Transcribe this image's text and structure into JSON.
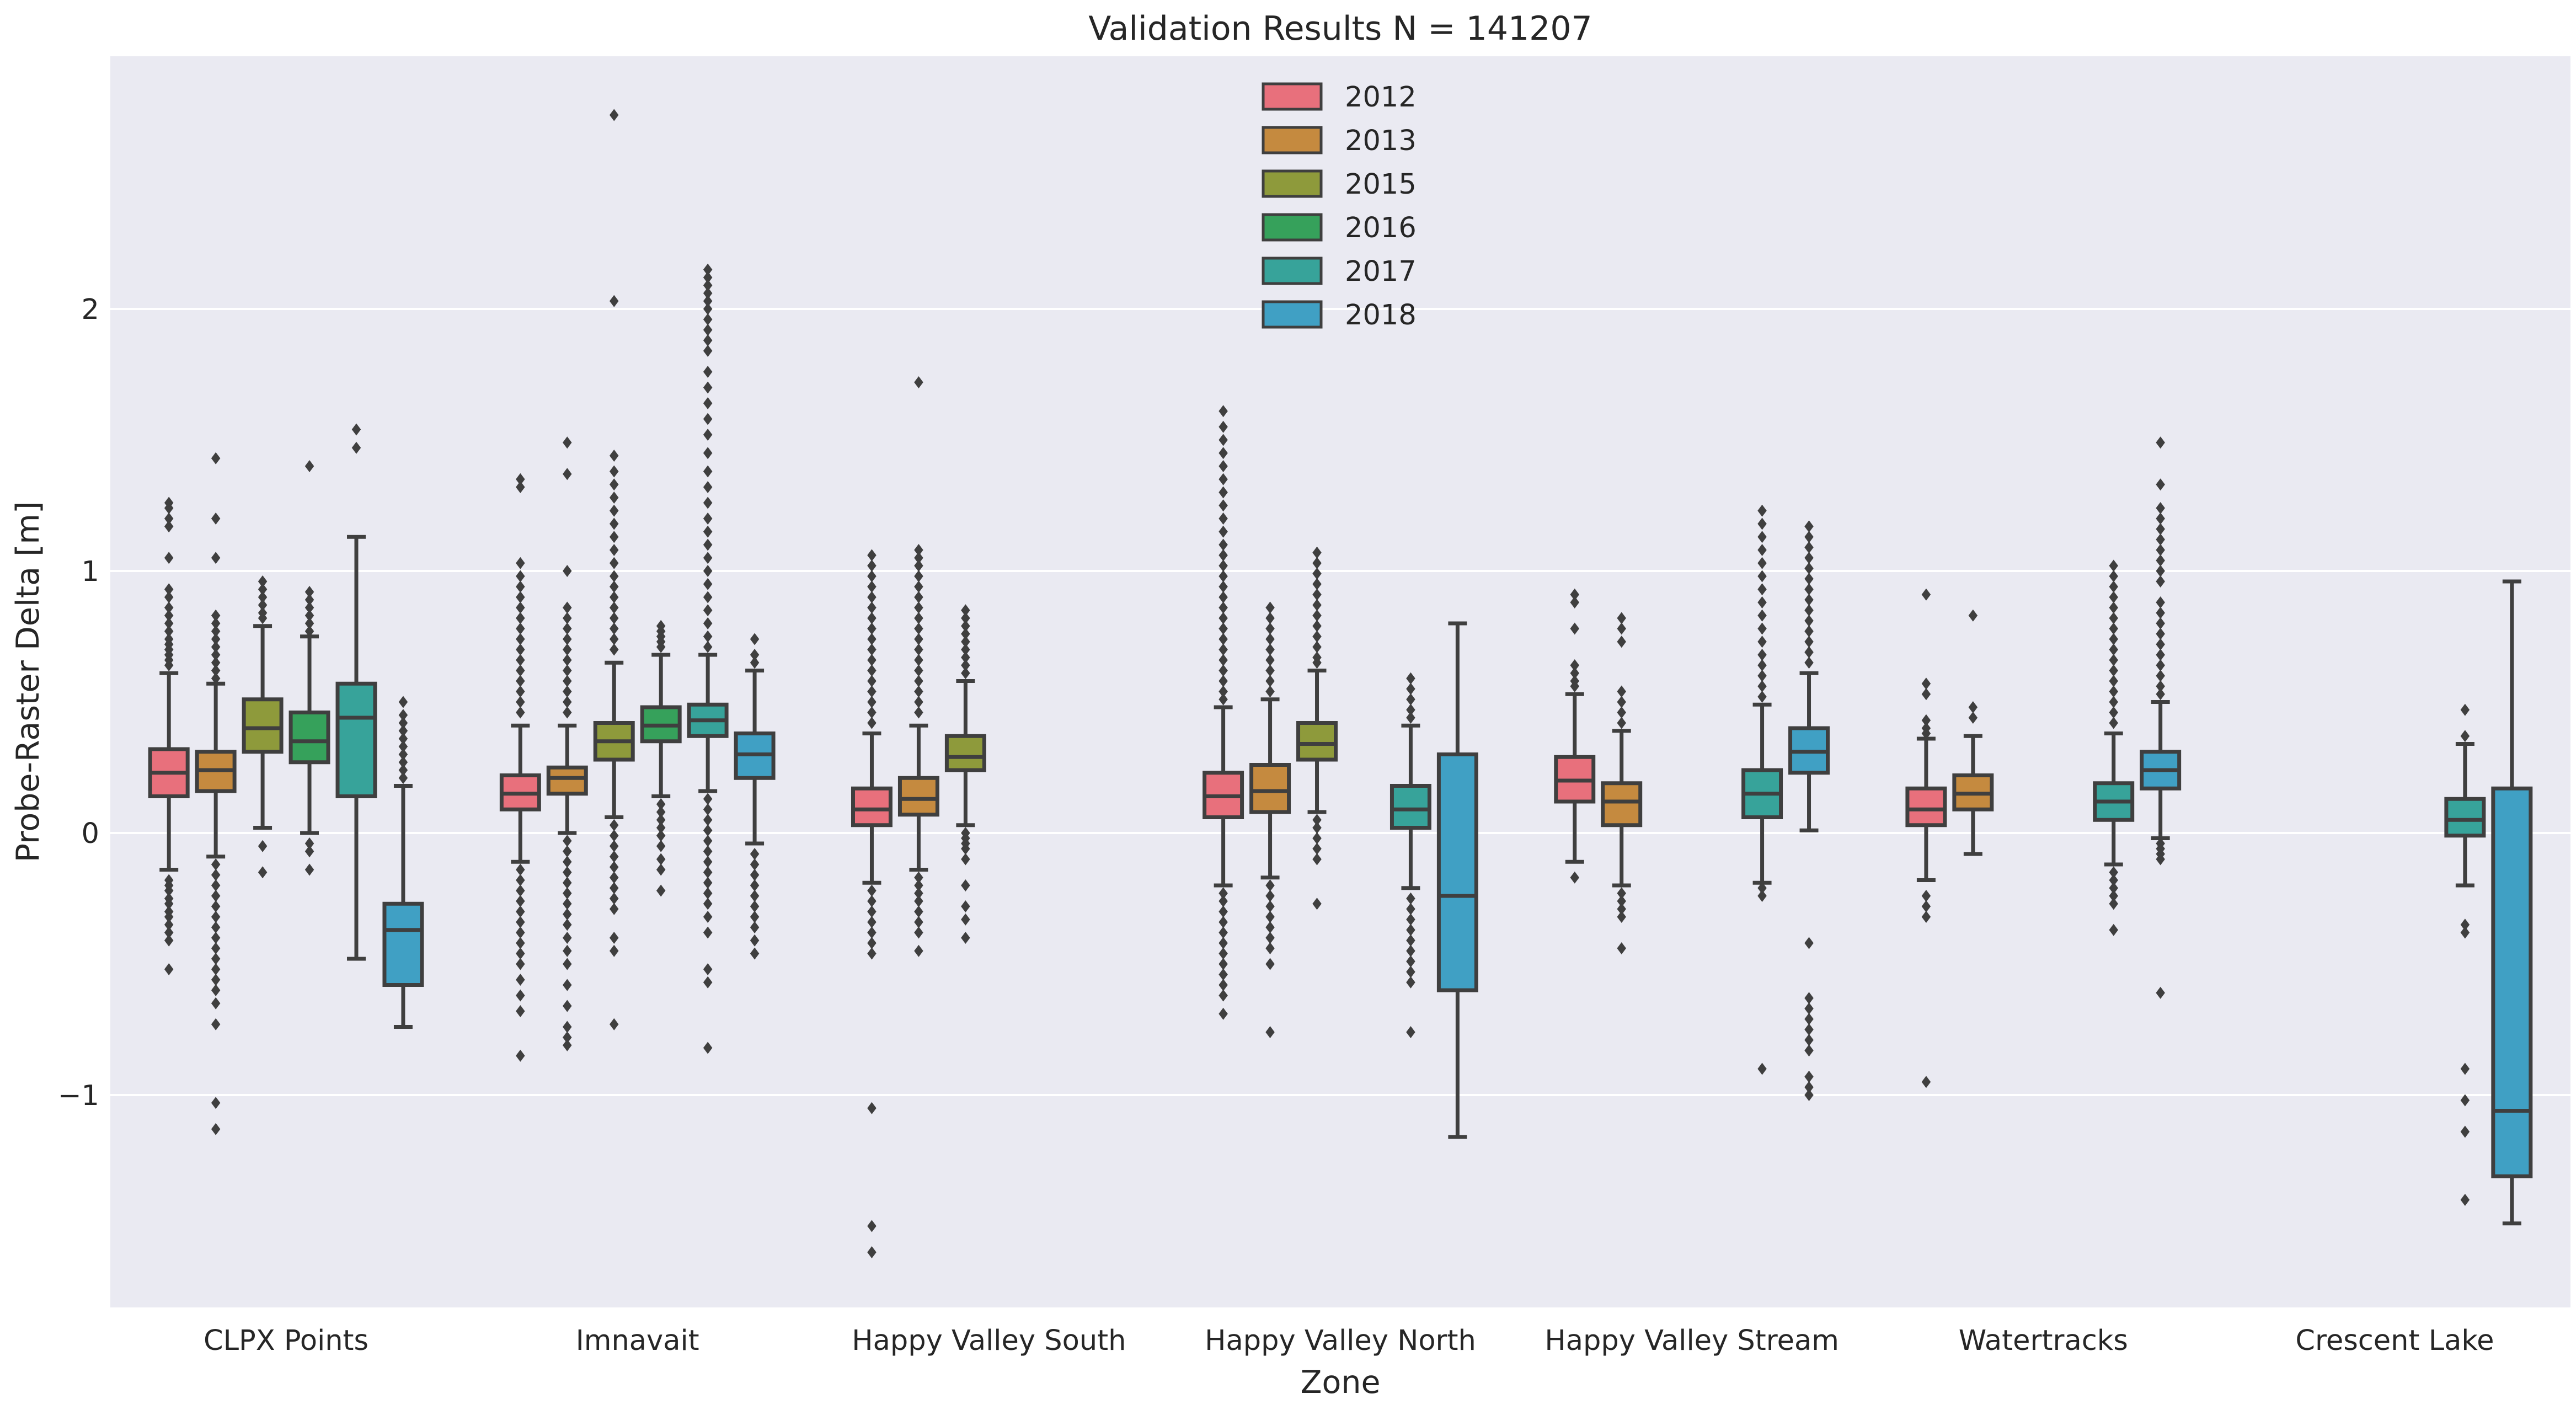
{
  "chart_data": {
    "type": "boxplot",
    "title": "Validation Results N = 141207",
    "xlabel": "Zone",
    "ylabel": "Probe-Raster Delta [m]",
    "ylim": [
      -1.8,
      2.85
    ],
    "yticks": [
      -1,
      0,
      1,
      2
    ],
    "ytick_labels": [
      "−1",
      "0",
      "1",
      "2"
    ],
    "grid": true,
    "legend_position": "top-center",
    "categories": [
      "CLPX Points",
      "Imnavait",
      "Happy Valley South",
      "Happy Valley North",
      "Happy Valley Stream",
      "Watertracks",
      "Crescent Lake"
    ],
    "series": [
      {
        "name": "2012",
        "color": "#e8707c"
      },
      {
        "name": "2013",
        "color": "#c58a3f"
      },
      {
        "name": "2015",
        "color": "#8e9a3b"
      },
      {
        "name": "2016",
        "color": "#36a15b"
      },
      {
        "name": "2017",
        "color": "#37a39a"
      },
      {
        "name": "2018",
        "color": "#40a0c4"
      }
    ],
    "boxes": [
      {
        "zone": 0,
        "series": 0,
        "q1": 0.14,
        "median": 0.23,
        "q3": 0.32,
        "whisker_low": -0.14,
        "whisker_high": 0.61,
        "outliers": [
          1.26,
          1.24,
          1.2,
          1.17,
          1.05,
          0.93,
          0.9,
          0.86,
          0.83,
          0.8,
          0.77,
          0.74,
          0.72,
          0.7,
          0.68,
          0.66,
          0.64,
          -0.18,
          -0.2,
          -0.22,
          -0.25,
          -0.27,
          -0.3,
          -0.32,
          -0.35,
          -0.38,
          -0.41,
          -0.52
        ]
      },
      {
        "zone": 0,
        "series": 1,
        "q1": 0.16,
        "median": 0.24,
        "q3": 0.31,
        "whisker_low": -0.09,
        "whisker_high": 0.57,
        "outliers": [
          1.43,
          1.2,
          1.05,
          0.83,
          0.8,
          0.77,
          0.74,
          0.71,
          0.68,
          0.65,
          0.62,
          0.59,
          -0.12,
          -0.16,
          -0.2,
          -0.24,
          -0.28,
          -0.32,
          -0.36,
          -0.4,
          -0.44,
          -0.48,
          -0.52,
          -0.56,
          -0.6,
          -0.65,
          -0.73,
          -1.03,
          -1.13
        ]
      },
      {
        "zone": 0,
        "series": 2,
        "q1": 0.31,
        "median": 0.4,
        "q3": 0.51,
        "whisker_low": 0.02,
        "whisker_high": 0.79,
        "outliers": [
          0.96,
          0.93,
          0.9,
          0.87,
          0.84,
          0.82,
          -0.05,
          -0.15
        ]
      },
      {
        "zone": 0,
        "series": 3,
        "q1": 0.27,
        "median": 0.35,
        "q3": 0.46,
        "whisker_low": 0.0,
        "whisker_high": 0.75,
        "outliers": [
          1.4,
          0.92,
          0.89,
          0.86,
          0.83,
          0.8,
          0.77,
          -0.04,
          -0.07,
          -0.14
        ]
      },
      {
        "zone": 0,
        "series": 4,
        "q1": 0.14,
        "median": 0.44,
        "q3": 0.57,
        "whisker_low": -0.48,
        "whisker_high": 1.13,
        "outliers": [
          1.54,
          1.47
        ]
      },
      {
        "zone": 0,
        "series": 5,
        "q1": -0.58,
        "median": -0.37,
        "q3": -0.27,
        "whisker_low": -0.74,
        "whisker_high": 0.18,
        "outliers": [
          0.5,
          0.45,
          0.42,
          0.39,
          0.36,
          0.33,
          0.3,
          0.27,
          0.24,
          0.21
        ]
      },
      {
        "zone": 1,
        "series": 0,
        "q1": 0.09,
        "median": 0.15,
        "q3": 0.22,
        "whisker_low": -0.11,
        "whisker_high": 0.41,
        "outliers": [
          1.35,
          1.32,
          1.03,
          0.98,
          0.94,
          0.9,
          0.86,
          0.82,
          0.78,
          0.74,
          0.7,
          0.66,
          0.62,
          0.58,
          0.54,
          0.5,
          0.46,
          -0.14,
          -0.18,
          -0.22,
          -0.26,
          -0.3,
          -0.34,
          -0.38,
          -0.42,
          -0.46,
          -0.5,
          -0.56,
          -0.62,
          -0.68,
          -0.85
        ]
      },
      {
        "zone": 1,
        "series": 1,
        "q1": 0.15,
        "median": 0.21,
        "q3": 0.25,
        "whisker_low": 0.0,
        "whisker_high": 0.41,
        "outliers": [
          1.49,
          1.37,
          1.0,
          0.86,
          0.82,
          0.78,
          0.74,
          0.7,
          0.66,
          0.62,
          0.58,
          0.54,
          0.5,
          0.46,
          -0.03,
          -0.07,
          -0.11,
          -0.15,
          -0.19,
          -0.23,
          -0.27,
          -0.31,
          -0.35,
          -0.4,
          -0.45,
          -0.5,
          -0.58,
          -0.66,
          -0.74,
          -0.78,
          -0.81
        ]
      },
      {
        "zone": 1,
        "series": 2,
        "q1": 0.28,
        "median": 0.35,
        "q3": 0.42,
        "whisker_low": 0.06,
        "whisker_high": 0.65,
        "outliers": [
          2.74,
          2.03,
          1.44,
          1.38,
          1.33,
          1.28,
          1.23,
          1.18,
          1.13,
          1.08,
          1.03,
          0.98,
          0.94,
          0.9,
          0.86,
          0.82,
          0.78,
          0.74,
          0.7,
          0.03,
          -0.01,
          -0.05,
          -0.09,
          -0.13,
          -0.17,
          -0.21,
          -0.25,
          -0.29,
          -0.4,
          -0.45,
          -0.73
        ]
      },
      {
        "zone": 1,
        "series": 3,
        "q1": 0.35,
        "median": 0.41,
        "q3": 0.48,
        "whisker_low": 0.14,
        "whisker_high": 0.68,
        "outliers": [
          0.79,
          0.77,
          0.75,
          0.73,
          0.71,
          0.11,
          0.08,
          0.05,
          0.02,
          -0.01,
          -0.05,
          -0.1,
          -0.14,
          -0.22
        ]
      },
      {
        "zone": 1,
        "series": 4,
        "q1": 0.37,
        "median": 0.43,
        "q3": 0.49,
        "whisker_low": 0.16,
        "whisker_high": 0.68,
        "outliers": [
          2.15,
          2.12,
          2.09,
          2.06,
          2.03,
          2.0,
          1.96,
          1.92,
          1.88,
          1.84,
          1.76,
          1.7,
          1.64,
          1.58,
          1.52,
          1.45,
          1.38,
          1.32,
          1.26,
          1.2,
          1.15,
          1.1,
          1.05,
          1.0,
          0.95,
          0.9,
          0.85,
          0.8,
          0.75,
          0.71,
          0.13,
          0.09,
          0.05,
          0.01,
          -0.03,
          -0.07,
          -0.11,
          -0.15,
          -0.19,
          -0.23,
          -0.27,
          -0.32,
          -0.38,
          -0.52,
          -0.57,
          -0.82
        ]
      },
      {
        "zone": 1,
        "series": 5,
        "q1": 0.21,
        "median": 0.3,
        "q3": 0.38,
        "whisker_low": -0.04,
        "whisker_high": 0.62,
        "outliers": [
          0.74,
          0.68,
          0.65,
          -0.08,
          -0.12,
          -0.16,
          -0.2,
          -0.24,
          -0.28,
          -0.32,
          -0.36,
          -0.41,
          -0.46
        ]
      },
      {
        "zone": 2,
        "series": 0,
        "q1": 0.03,
        "median": 0.09,
        "q3": 0.17,
        "whisker_low": -0.19,
        "whisker_high": 0.38,
        "outliers": [
          1.06,
          1.02,
          0.98,
          0.94,
          0.9,
          0.86,
          0.82,
          0.78,
          0.74,
          0.7,
          0.66,
          0.62,
          0.58,
          0.54,
          0.5,
          0.46,
          0.42,
          -0.22,
          -0.26,
          -0.3,
          -0.34,
          -0.38,
          -0.42,
          -0.46,
          -1.05,
          -1.5,
          -1.6
        ]
      },
      {
        "zone": 2,
        "series": 1,
        "q1": 0.07,
        "median": 0.13,
        "q3": 0.21,
        "whisker_low": -0.14,
        "whisker_high": 0.41,
        "outliers": [
          1.72,
          1.08,
          1.05,
          1.02,
          0.98,
          0.94,
          0.9,
          0.86,
          0.82,
          0.78,
          0.74,
          0.7,
          0.66,
          0.62,
          0.58,
          0.54,
          0.5,
          0.46,
          -0.17,
          -0.2,
          -0.23,
          -0.26,
          -0.3,
          -0.34,
          -0.38,
          -0.45
        ]
      },
      {
        "zone": 2,
        "series": 2,
        "q1": 0.24,
        "median": 0.29,
        "q3": 0.37,
        "whisker_low": 0.03,
        "whisker_high": 0.58,
        "outliers": [
          0.85,
          0.82,
          0.79,
          0.76,
          0.73,
          0.7,
          0.67,
          0.64,
          0.61,
          0.0,
          -0.02,
          -0.04,
          -0.06,
          -0.1,
          -0.2,
          -0.28,
          -0.33,
          -0.4
        ]
      },
      {
        "zone": 3,
        "series": 0,
        "q1": 0.06,
        "median": 0.14,
        "q3": 0.23,
        "whisker_low": -0.2,
        "whisker_high": 0.48,
        "outliers": [
          1.61,
          1.55,
          1.5,
          1.45,
          1.4,
          1.35,
          1.3,
          1.25,
          1.2,
          1.15,
          1.1,
          1.06,
          1.02,
          0.98,
          0.94,
          0.9,
          0.86,
          0.82,
          0.78,
          0.74,
          0.7,
          0.66,
          0.62,
          0.58,
          0.54,
          0.51,
          -0.23,
          -0.26,
          -0.3,
          -0.34,
          -0.38,
          -0.42,
          -0.46,
          -0.5,
          -0.54,
          -0.58,
          -0.62,
          -0.69
        ]
      },
      {
        "zone": 3,
        "series": 1,
        "q1": 0.08,
        "median": 0.16,
        "q3": 0.26,
        "whisker_low": -0.17,
        "whisker_high": 0.51,
        "outliers": [
          0.86,
          0.82,
          0.78,
          0.74,
          0.7,
          0.66,
          0.62,
          0.58,
          0.54,
          -0.2,
          -0.24,
          -0.28,
          -0.32,
          -0.36,
          -0.4,
          -0.44,
          -0.5,
          -0.76
        ]
      },
      {
        "zone": 3,
        "series": 2,
        "q1": 0.28,
        "median": 0.34,
        "q3": 0.42,
        "whisker_low": 0.08,
        "whisker_high": 0.62,
        "outliers": [
          1.07,
          1.03,
          0.99,
          0.95,
          0.91,
          0.87,
          0.83,
          0.79,
          0.75,
          0.71,
          0.67,
          0.65,
          0.05,
          0.02,
          -0.02,
          -0.06,
          -0.1,
          -0.27
        ]
      },
      {
        "zone": 3,
        "series": 4,
        "q1": 0.02,
        "median": 0.09,
        "q3": 0.18,
        "whisker_low": -0.21,
        "whisker_high": 0.41,
        "outliers": [
          0.59,
          0.55,
          0.51,
          0.47,
          0.44,
          -0.25,
          -0.29,
          -0.33,
          -0.37,
          -0.41,
          -0.45,
          -0.49,
          -0.53,
          -0.57,
          -0.76
        ]
      },
      {
        "zone": 3,
        "series": 5,
        "q1": -0.6,
        "median": -0.24,
        "q3": 0.3,
        "whisker_low": -1.16,
        "whisker_high": 0.8,
        "outliers": []
      },
      {
        "zone": 4,
        "series": 0,
        "q1": 0.12,
        "median": 0.2,
        "q3": 0.29,
        "whisker_low": -0.11,
        "whisker_high": 0.53,
        "outliers": [
          0.91,
          0.88,
          0.78,
          0.64,
          0.61,
          0.58,
          0.56,
          -0.17
        ]
      },
      {
        "zone": 4,
        "series": 1,
        "q1": 0.03,
        "median": 0.12,
        "q3": 0.19,
        "whisker_low": -0.2,
        "whisker_high": 0.39,
        "outliers": [
          0.82,
          0.78,
          0.73,
          0.54,
          0.5,
          0.46,
          0.42,
          -0.23,
          -0.26,
          -0.29,
          -0.32,
          -0.44
        ]
      },
      {
        "zone": 4,
        "series": 4,
        "q1": 0.06,
        "median": 0.15,
        "q3": 0.24,
        "whisker_low": -0.19,
        "whisker_high": 0.49,
        "outliers": [
          1.23,
          1.18,
          1.13,
          1.08,
          1.03,
          0.98,
          0.93,
          0.88,
          0.83,
          0.78,
          0.73,
          0.68,
          0.64,
          0.6,
          0.56,
          0.52,
          -0.21,
          -0.24,
          -0.9
        ]
      },
      {
        "zone": 4,
        "series": 5,
        "q1": 0.23,
        "median": 0.31,
        "q3": 0.4,
        "whisker_low": 0.01,
        "whisker_high": 0.61,
        "outliers": [
          1.17,
          1.13,
          1.09,
          1.05,
          1.01,
          0.97,
          0.93,
          0.89,
          0.85,
          0.81,
          0.77,
          0.73,
          0.69,
          0.65,
          -0.42,
          -0.63,
          -0.67,
          -0.71,
          -0.75,
          -0.79,
          -0.83,
          -0.93,
          -0.97,
          -1.0
        ]
      },
      {
        "zone": 5,
        "series": 0,
        "q1": 0.03,
        "median": 0.09,
        "q3": 0.17,
        "whisker_low": -0.18,
        "whisker_high": 0.36,
        "outliers": [
          0.91,
          0.57,
          0.53,
          0.43,
          0.4,
          0.38,
          -0.24,
          -0.28,
          -0.32,
          -0.95
        ]
      },
      {
        "zone": 5,
        "series": 1,
        "q1": 0.09,
        "median": 0.15,
        "q3": 0.22,
        "whisker_low": -0.08,
        "whisker_high": 0.37,
        "outliers": [
          0.83,
          0.48,
          0.44
        ]
      },
      {
        "zone": 5,
        "series": 4,
        "q1": 0.05,
        "median": 0.12,
        "q3": 0.19,
        "whisker_low": -0.12,
        "whisker_high": 0.38,
        "outliers": [
          1.02,
          0.98,
          0.94,
          0.9,
          0.86,
          0.82,
          0.78,
          0.74,
          0.7,
          0.66,
          0.62,
          0.58,
          0.54,
          0.5,
          0.46,
          0.42,
          -0.15,
          -0.18,
          -0.21,
          -0.24,
          -0.27,
          -0.37
        ]
      },
      {
        "zone": 5,
        "series": 5,
        "q1": 0.17,
        "median": 0.24,
        "q3": 0.31,
        "whisker_low": -0.02,
        "whisker_high": 0.5,
        "outliers": [
          1.49,
          1.33,
          1.24,
          1.2,
          1.16,
          1.12,
          1.08,
          1.04,
          1.0,
          0.96,
          0.88,
          0.84,
          0.8,
          0.76,
          0.72,
          0.68,
          0.64,
          0.6,
          0.56,
          0.53,
          -0.04,
          -0.06,
          -0.08,
          -0.1,
          -0.61
        ]
      },
      {
        "zone": 6,
        "series": 4,
        "q1": -0.01,
        "median": 0.05,
        "q3": 0.13,
        "whisker_low": -0.2,
        "whisker_high": 0.34,
        "outliers": [
          0.47,
          0.37,
          -0.35,
          -0.38,
          -0.9,
          -1.02,
          -1.14,
          -1.4
        ]
      },
      {
        "zone": 6,
        "series": 5,
        "q1": -1.31,
        "median": -1.06,
        "q3": 0.17,
        "whisker_low": -1.49,
        "whisker_high": 0.96,
        "outliers": []
      }
    ]
  }
}
